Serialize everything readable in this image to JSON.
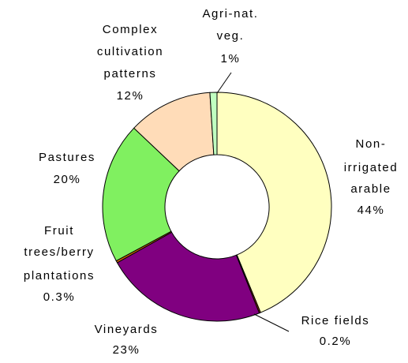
{
  "chart_data": {
    "type": "donut",
    "categories": [
      [
        "Non-",
        "irrigated",
        "arable"
      ],
      [
        "Rice fields"
      ],
      [
        "Vineyards"
      ],
      [
        "Fruit",
        "trees/berry",
        "plantations"
      ],
      [
        "Pastures"
      ],
      [
        "Complex",
        "cultivation",
        "patterns"
      ],
      [
        "Agri-nat.",
        "veg."
      ]
    ],
    "values": [
      44,
      0.2,
      23,
      0.3,
      20,
      12,
      1
    ],
    "value_labels": [
      "44%",
      "0.2%",
      "23%",
      "0.3%",
      "20%",
      "12%",
      "1%"
    ],
    "colors": [
      "#ffffc0",
      "#993300",
      "#800080",
      "#cc6600",
      "#80f060",
      "#ffdcb8",
      "#c0ffc0"
    ]
  }
}
